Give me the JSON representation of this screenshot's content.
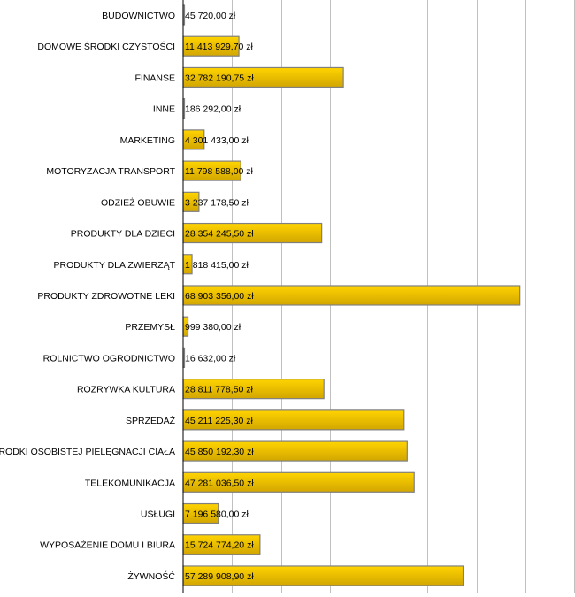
{
  "chart_data": {
    "type": "bar",
    "orientation": "horizontal",
    "title": "",
    "xlabel": "",
    "ylabel": "",
    "xlim": [
      0,
      80000000
    ],
    "grid_step": 10000000,
    "grid": true,
    "bar_color": "#f5c400",
    "categories": [
      "BUDOWNICTWO",
      "DOMOWE ŚRODKI CZYSTOŚCI",
      "FINANSE",
      "INNE",
      "MARKETING",
      "MOTORYZACJA TRANSPORT",
      "ODZIEŻ OBUWIE",
      "PRODUKTY DLA DZIECI",
      "PRODUKTY DLA ZWIERZĄT",
      "PRODUKTY ZDROWOTNE LEKI",
      "PRZEMYSŁ",
      "ROLNICTWO OGRODNICTWO",
      "ROZRYWKA KULTURA",
      "SPRZEDAŻ",
      "ŚRODKI OSOBISTEJ PIELĘGNACJI CIAŁA",
      "TELEKOMUNIKACJA",
      "USŁUGI",
      "WYPOSAŻENIE DOMU I BIURA",
      "ŻYWNOŚĆ"
    ],
    "values": [
      45720.0,
      11413929.7,
      32782190.75,
      186292.0,
      4301433.0,
      11798588.0,
      3237178.5,
      28354245.5,
      1818415.0,
      68903356.0,
      999380.0,
      16632.0,
      28811778.5,
      45211225.3,
      45850192.3,
      47281036.5,
      7196580.0,
      15724774.2,
      57289908.9
    ],
    "data_labels": [
      "45 720,00 zł",
      "11 413 929,70 zł",
      "32 782 190,75 zł",
      "186 292,00 zł",
      "4 301 433,00 zł",
      "11 798 588,00 zł",
      "3 237 178,50 zł",
      "28 354 245,50 zł",
      "1 818 415,00 zł",
      "68 903 356,00 zł",
      "999 380,00 zł",
      "16 632,00 zł",
      "28 811 778,50 zł",
      "45 211 225,30 zł",
      "45 850 192,30 zł",
      "47 281 036,50 zł",
      "7 196 580,00 zł",
      "15 724 774,20 zł",
      "57 289 908,90 zł"
    ]
  }
}
